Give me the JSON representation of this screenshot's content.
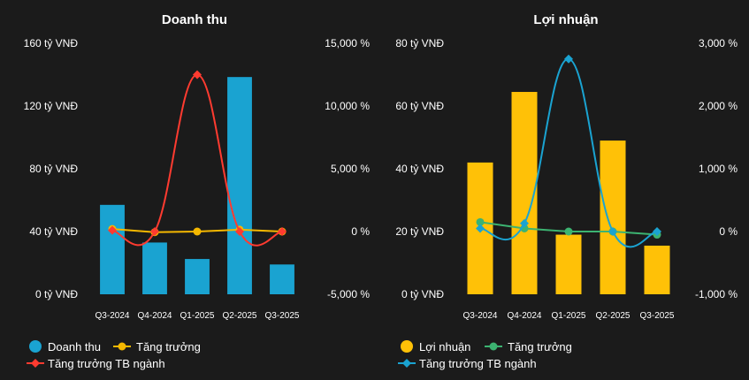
{
  "chart_data": [
    {
      "type": "bar",
      "title": "Doanh thu",
      "categories": [
        "Q3-2024",
        "Q4-2024",
        "Q1-2025",
        "Q2-2025",
        "Q3-2025"
      ],
      "bar_series": {
        "name": "Doanh thu",
        "values": [
          57,
          33,
          22.5,
          138.5,
          19
        ],
        "color": "#1aa3d1"
      },
      "line_series": [
        {
          "name": "Tăng trưởng",
          "values": [
            200,
            -50,
            0,
            150,
            0
          ],
          "color": "#f5b800",
          "marker": "circle",
          "smooth": false
        },
        {
          "name": "Tăng trưởng TB ngành",
          "values": [
            100,
            0,
            12500,
            0,
            0
          ],
          "color": "#ff3b30",
          "marker": "diamond",
          "smooth": true
        }
      ],
      "y_left": {
        "min": 0,
        "max": 160,
        "ticks": [
          0,
          40,
          80,
          120,
          160
        ],
        "tick_labels": [
          "0 tỷ VNĐ",
          "40 tỷ VNĐ",
          "80 tỷ VNĐ",
          "120 tỷ VNĐ",
          "160 tỷ VNĐ"
        ]
      },
      "y_right": {
        "min": -5000,
        "max": 15000,
        "ticks": [
          -5000,
          0,
          5000,
          10000,
          15000
        ],
        "tick_labels": [
          "-5,000 %",
          "0 %",
          "5,000 %",
          "10,000 %",
          "15,000 %"
        ]
      },
      "legend": {
        "position": "bottom-left",
        "entries": [
          "Doanh thu",
          "Tăng trưởng",
          "Tăng trưởng TB ngành"
        ]
      }
    },
    {
      "type": "bar",
      "title": "Lợi nhuận",
      "categories": [
        "Q3-2024",
        "Q4-2024",
        "Q1-2025",
        "Q2-2025",
        "Q3-2025"
      ],
      "bar_series": {
        "name": "Lợi nhuận",
        "values": [
          42,
          64.5,
          19,
          49,
          15.5
        ],
        "color": "#ffc107"
      },
      "line_series": [
        {
          "name": "Tăng trưởng",
          "values": [
            150,
            50,
            0,
            0,
            -50
          ],
          "color": "#3cb371",
          "marker": "circle",
          "smooth": false
        },
        {
          "name": "Tăng trưởng TB ngành",
          "values": [
            50,
            130,
            2750,
            0,
            0
          ],
          "color": "#1aa3d1",
          "marker": "diamond",
          "smooth": true
        }
      ],
      "y_left": {
        "min": 0,
        "max": 80,
        "ticks": [
          0,
          20,
          40,
          60,
          80
        ],
        "tick_labels": [
          "0 tỷ VNĐ",
          "20 tỷ VNĐ",
          "40 tỷ VNĐ",
          "60 tỷ VNĐ",
          "80 tỷ VNĐ"
        ]
      },
      "y_right": {
        "min": -1000,
        "max": 3000,
        "ticks": [
          -1000,
          0,
          1000,
          2000,
          3000
        ],
        "tick_labels": [
          "-1,000 %",
          "0 %",
          "1,000 %",
          "2,000 %",
          "3,000 %"
        ]
      },
      "legend": {
        "position": "bottom-left",
        "entries": [
          "Lợi nhuận",
          "Tăng trưởng",
          "Tăng trưởng TB ngành"
        ]
      }
    }
  ]
}
